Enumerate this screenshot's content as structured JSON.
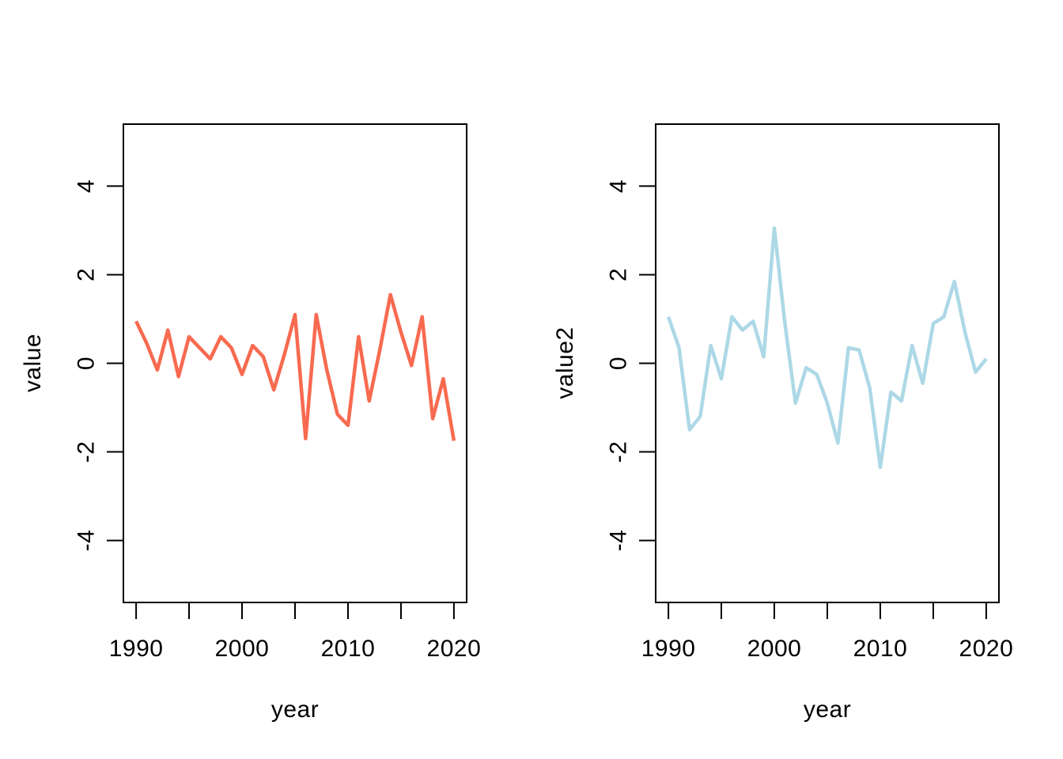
{
  "figure": {
    "background": "#ffffff",
    "text_color": "#000000",
    "axis_color": "#000000"
  },
  "chart_data": [
    {
      "type": "line",
      "panel": "left",
      "title": "",
      "xlabel": "year",
      "ylabel": "value",
      "line_color": "#f86a50",
      "grid": false,
      "legend": null,
      "xlim": [
        1988.8,
        2021.2
      ],
      "ylim": [
        -5.4,
        5.4
      ],
      "xticks": [
        1990,
        1995,
        2000,
        2005,
        2010,
        2015,
        2020
      ],
      "xtick_label_positions": [
        1990,
        2000,
        2010,
        2020
      ],
      "xtick_labels": [
        "1990",
        "2000",
        "2010",
        "2020"
      ],
      "yticks": [
        -4,
        -2,
        0,
        2,
        4
      ],
      "ytick_labels": [
        "-4",
        "-2",
        "0",
        "2",
        "4"
      ],
      "x": [
        1990,
        1991,
        1992,
        1993,
        1994,
        1995,
        1996,
        1997,
        1998,
        1999,
        2000,
        2001,
        2002,
        2003,
        2004,
        2005,
        2006,
        2007,
        2008,
        2009,
        2010,
        2011,
        2012,
        2013,
        2014,
        2015,
        2016,
        2017,
        2018,
        2019,
        2020
      ],
      "values": [
        0.95,
        0.45,
        -0.15,
        0.75,
        -0.3,
        0.6,
        0.35,
        0.1,
        0.6,
        0.35,
        -0.25,
        0.4,
        0.15,
        -0.6,
        0.2,
        1.1,
        -1.7,
        1.1,
        -0.15,
        -1.15,
        -1.4,
        0.6,
        -0.85,
        0.3,
        1.55,
        0.7,
        -0.05,
        1.05,
        -1.25,
        -0.35,
        -1.75
      ]
    },
    {
      "type": "line",
      "panel": "right",
      "title": "",
      "xlabel": "year",
      "ylabel": "value2",
      "line_color": "#add8e6",
      "grid": false,
      "legend": null,
      "xlim": [
        1988.8,
        2021.2
      ],
      "ylim": [
        -5.4,
        5.4
      ],
      "xticks": [
        1990,
        1995,
        2000,
        2005,
        2010,
        2015,
        2020
      ],
      "xtick_label_positions": [
        1990,
        2000,
        2010,
        2020
      ],
      "xtick_labels": [
        "1990",
        "2000",
        "2010",
        "2020"
      ],
      "yticks": [
        -4,
        -2,
        0,
        2,
        4
      ],
      "ytick_labels": [
        "-4",
        "-2",
        "0",
        "2",
        "4"
      ],
      "x": [
        1990,
        1991,
        1992,
        1993,
        1994,
        1995,
        1996,
        1997,
        1998,
        1999,
        2000,
        2001,
        2002,
        2003,
        2004,
        2005,
        2006,
        2007,
        2008,
        2009,
        2010,
        2011,
        2012,
        2013,
        2014,
        2015,
        2016,
        2017,
        2018,
        2019,
        2020
      ],
      "values": [
        1.05,
        0.35,
        -1.5,
        -1.2,
        0.4,
        -0.35,
        1.05,
        0.75,
        0.95,
        0.15,
        3.05,
        0.9,
        -0.9,
        -0.1,
        -0.25,
        -0.9,
        -1.8,
        0.35,
        0.3,
        -0.55,
        -2.35,
        -0.65,
        -0.85,
        0.4,
        -0.45,
        0.9,
        1.05,
        1.85,
        0.7,
        -0.2,
        0.1
      ]
    }
  ]
}
